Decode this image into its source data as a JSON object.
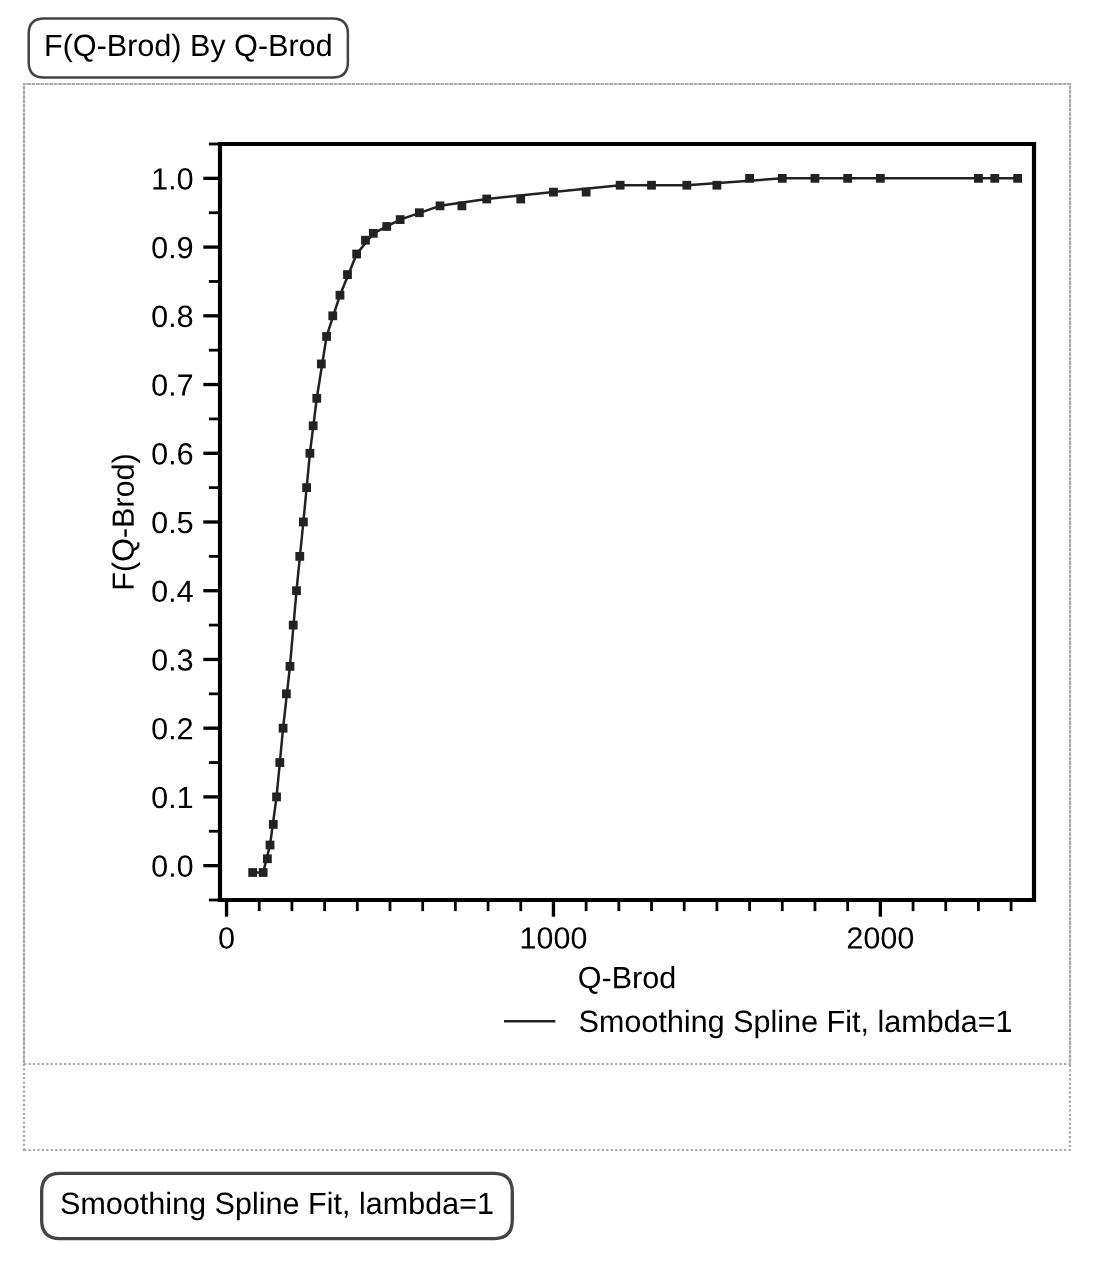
{
  "chart_data": {
    "type": "scatter",
    "title": "F(Q-Brod) By Q-Brod",
    "xlabel": "Q-Brod",
    "ylabel": "F(Q-Brod)",
    "series": [
      {
        "color": "#222222",
        "marker": "square",
        "x": [
          80,
          112,
          125,
          133,
          143,
          153,
          163,
          173,
          183,
          194,
          204,
          214,
          224,
          235,
          245,
          255,
          265,
          276,
          290,
          306,
          325,
          347,
          370,
          398,
          425,
          449,
          490,
          531,
          590,
          653,
          720,
          796,
          900,
          1000,
          1100,
          1204,
          1300,
          1408,
          1500,
          1600,
          1700,
          1800,
          1900,
          2000,
          2300,
          2350,
          2420
        ],
        "values": [
          -0.01,
          -0.01,
          0.01,
          0.03,
          0.06,
          0.1,
          0.15,
          0.2,
          0.25,
          0.29,
          0.35,
          0.4,
          0.45,
          0.5,
          0.55,
          0.6,
          0.64,
          0.68,
          0.73,
          0.77,
          0.8,
          0.83,
          0.86,
          0.89,
          0.91,
          0.92,
          0.93,
          0.94,
          0.95,
          0.96,
          0.96,
          0.97,
          0.97,
          0.98,
          0.98,
          0.99,
          0.99,
          0.99,
          0.99,
          1.0,
          1.0,
          1.0,
          1.0,
          1.0,
          1.0,
          1.0,
          1.0
        ]
      },
      {
        "type": "line",
        "name": "Smoothing Spline Fit, lambda=1",
        "color": "#222222",
        "x": [
          80,
          112,
          133,
          153,
          173,
          194,
          214,
          235,
          255,
          276,
          306,
          347,
          398,
          449,
          531,
          653,
          796,
          1000,
          1204,
          1408,
          1700,
          2000,
          2420
        ],
        "values": [
          -0.01,
          -0.01,
          0.03,
          0.1,
          0.2,
          0.29,
          0.4,
          0.5,
          0.6,
          0.68,
          0.77,
          0.83,
          0.89,
          0.92,
          0.94,
          0.96,
          0.97,
          0.98,
          0.99,
          0.99,
          1.0,
          1.0,
          1.0
        ]
      }
    ],
    "xlim": [
      -20,
      2470
    ],
    "ylim": [
      -0.05,
      1.05
    ],
    "xticks": [
      0,
      1000,
      2000
    ],
    "yticks": [
      {
        "value": 0,
        "label": "0.0"
      },
      0.1,
      0.2,
      0.3,
      0.4,
      0.5,
      0.6,
      0.7,
      0.8,
      0.9,
      {
        "value": 1,
        "label": "1.0"
      }
    ],
    "grid": false,
    "legend": "bottom",
    "annotations": [
      "Smoothing Spline Fit, lambda=1"
    ]
  }
}
